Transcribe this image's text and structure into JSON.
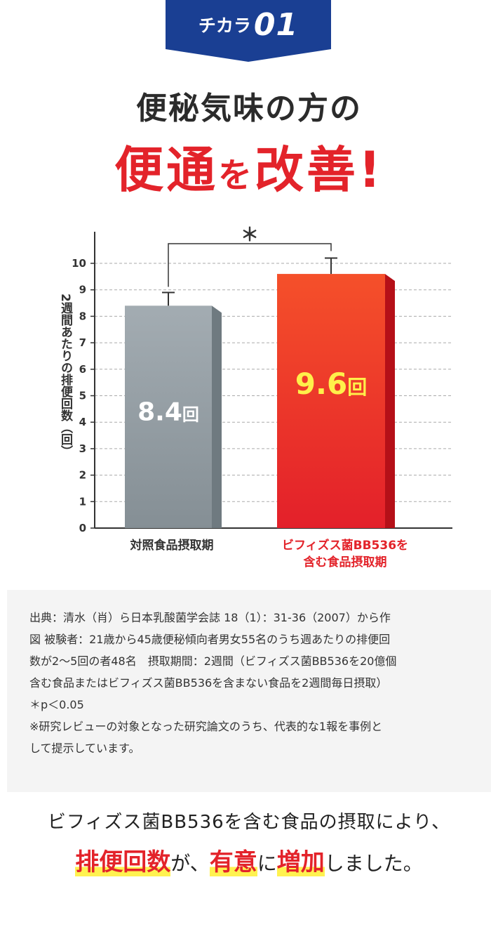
{
  "badge": {
    "word": "チカラ",
    "number": "01"
  },
  "headline": {
    "line1": "便秘気味の方の",
    "line2_a": "便通",
    "line2_b": "を",
    "line2_c": "改善!"
  },
  "chart_data": {
    "type": "bar",
    "ylabel": "2週間あたりの排便回数（回）",
    "ylim": [
      0,
      10
    ],
    "yticks": [
      "0",
      "1",
      "2",
      "3",
      "4",
      "5",
      "6",
      "7",
      "8",
      "9",
      "10"
    ],
    "grid": true,
    "categories": [
      "対照食品摂取期",
      "ビフィズス菌BB536を含む食品摂取期"
    ],
    "category_lines": [
      [
        "対照食品摂取期"
      ],
      [
        "ビフィズス菌BB536を",
        "含む食品摂取期"
      ]
    ],
    "values": [
      8.4,
      9.6
    ],
    "errors": [
      0.5,
      0.6
    ],
    "data_labels": [
      {
        "value": "8.4",
        "unit": "回"
      },
      {
        "value": "9.6",
        "unit": "回"
      }
    ],
    "colors": {
      "control": "#8f999f",
      "treatment": "#e3232a",
      "treatment_label": "#fff04a",
      "label_red": "#e3232a"
    },
    "significance": "＊"
  },
  "source": {
    "lines": [
      "出典：清水（肖）ら日本乳酸菌学会誌 18（1）：31-36（2007）から作",
      "図 被験者：21歳から45歳便秘傾向者男女55名のうち週あたりの排便回",
      "数が2〜5回の者48名　摂取期間：2週間（ビフィズス菌BB536を20億個",
      "含む食品またはビフィズス菌BB536を含まない食品を2週間毎日摂取）",
      "＊p＜0.05",
      "※研究レビューの対象となった研究論文のうち、代表的な1報を事例と",
      "して提示しています。"
    ]
  },
  "summary": {
    "line1": "ビフィズス菌BB536を含む食品の摂取により、",
    "hl1": "排便回数",
    "t1": "が、",
    "hl2": "有意",
    "t2": "に",
    "hl3": "増加",
    "t3": "しました。"
  }
}
